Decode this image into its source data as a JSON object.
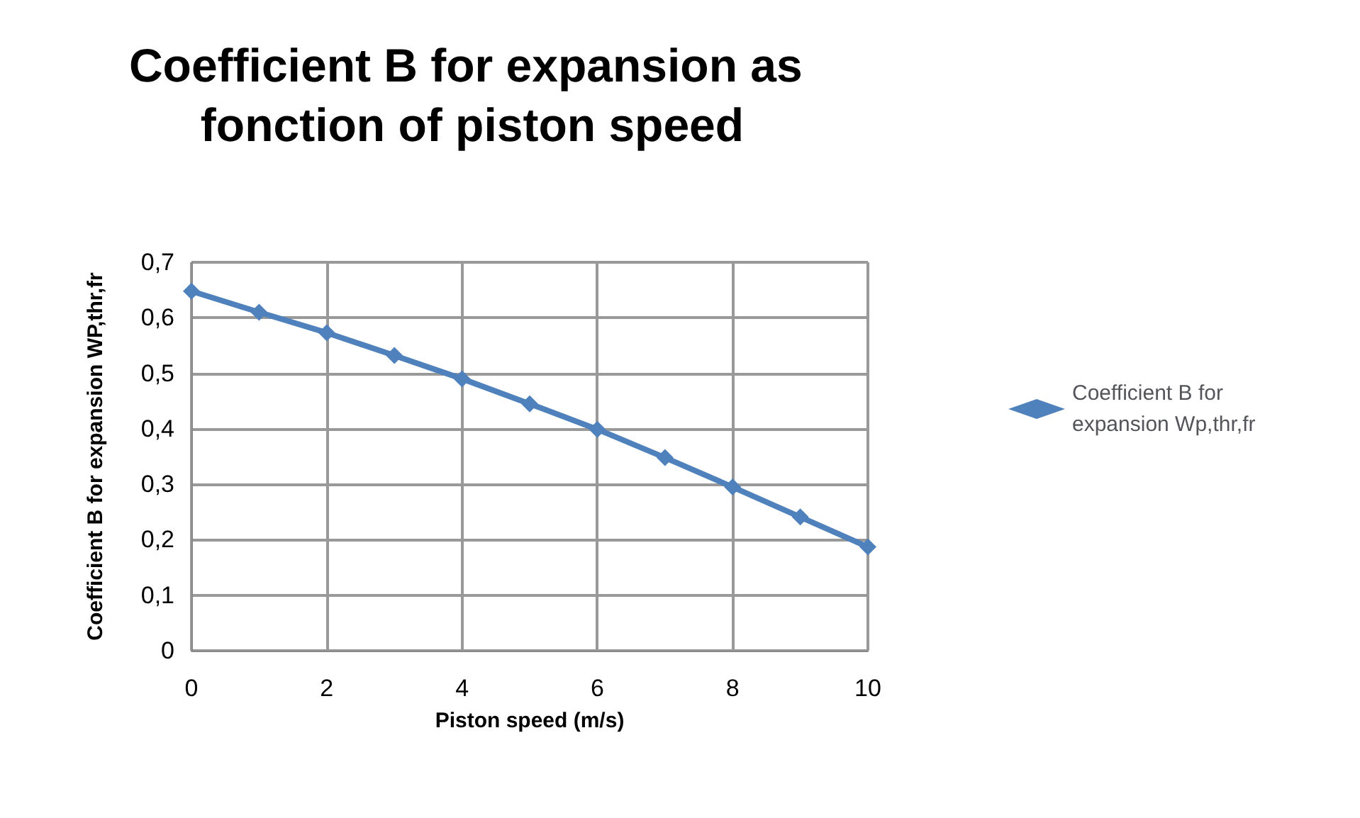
{
  "chart_data": {
    "type": "line",
    "title": "Coefficient B for expansion as fonction of piston speed",
    "xlabel": "Piston speed (m/s)",
    "ylabel": "Coefficient B for expansion WP,thr,fr",
    "x": [
      0,
      1,
      2,
      3,
      4,
      5,
      6,
      7,
      8,
      9,
      10
    ],
    "series": [
      {
        "name": "Coefficient B for expansion Wp,thr,fr",
        "color": "#4f81bd",
        "values": [
          0.648,
          0.61,
          0.573,
          0.532,
          0.49,
          0.445,
          0.399,
          0.348,
          0.295,
          0.241,
          0.187
        ]
      }
    ],
    "xlim": [
      0,
      10
    ],
    "xticks": [
      0,
      2,
      4,
      6,
      8,
      10
    ],
    "ylim": [
      0,
      0.7
    ],
    "yticks": [
      0,
      {
        "value": 0.1,
        "label": "0,1"
      },
      {
        "value": 0.2,
        "label": "0,2"
      },
      {
        "value": 0.3,
        "label": "0,3"
      },
      {
        "value": 0.4,
        "label": "0,4"
      },
      {
        "value": 0.5,
        "label": "0,5"
      },
      {
        "value": 0.6,
        "label": "0,6"
      },
      {
        "value": 0.7,
        "label": "0,7"
      }
    ],
    "grid": true,
    "legend": "right",
    "marker": "diamond",
    "line_style": "solid"
  }
}
